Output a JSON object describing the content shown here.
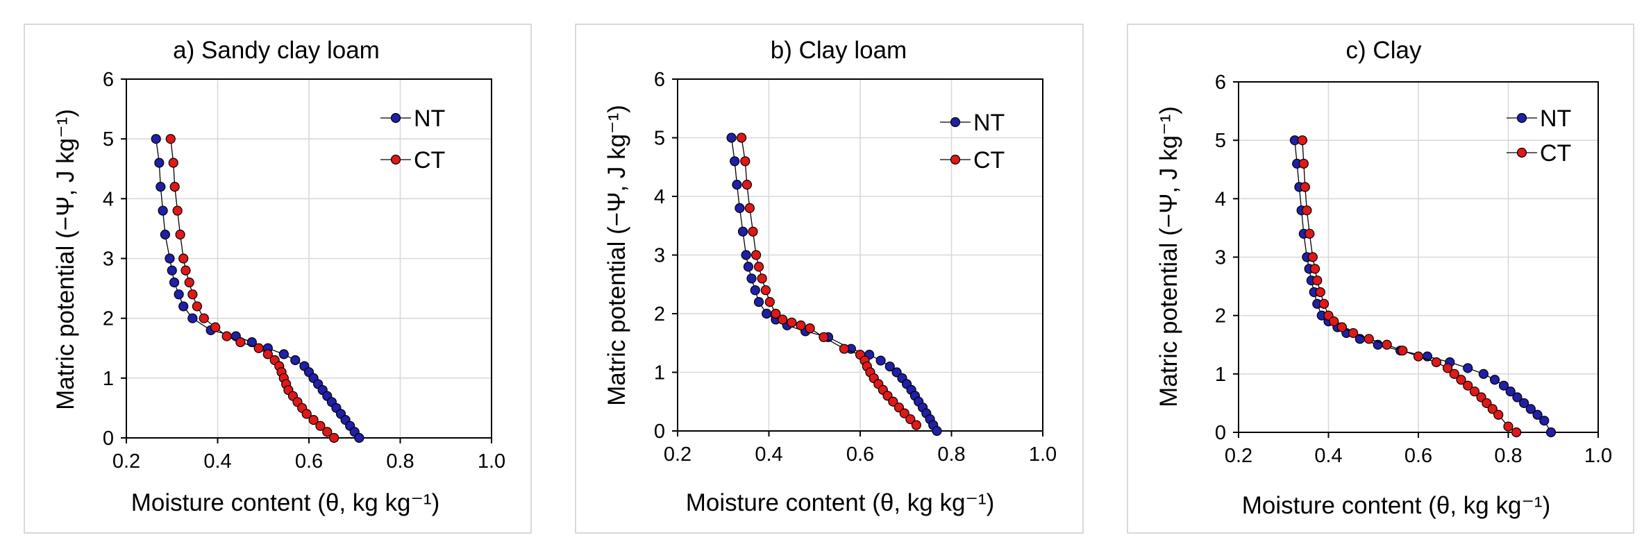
{
  "chart_data": [
    {
      "type": "line",
      "title": "a) Sandy clay loam",
      "xlabel": "Moisture content (θ, kg kg⁻¹)",
      "ylabel": "Matric potential (−Ψ, J kg⁻¹)",
      "xlim": [
        0.2,
        1.0
      ],
      "ylim": [
        0,
        6
      ],
      "xticks": [
        "0.2",
        "0.4",
        "0.6",
        "0.8",
        "1.0"
      ],
      "yticks": [
        "0",
        "1",
        "2",
        "3",
        "4",
        "5",
        "6"
      ],
      "grid": true,
      "legend_position": "top-right",
      "series": [
        {
          "name": "NT",
          "color": "#1f1fa8",
          "x": [
            0.265,
            0.272,
            0.275,
            0.28,
            0.285,
            0.295,
            0.3,
            0.305,
            0.315,
            0.325,
            0.345,
            0.385,
            0.44,
            0.475,
            0.51,
            0.545,
            0.57,
            0.59,
            0.6,
            0.61,
            0.62,
            0.63,
            0.64,
            0.65,
            0.66,
            0.67,
            0.68,
            0.69,
            0.7,
            0.71
          ],
          "y": [
            5.0,
            4.6,
            4.2,
            3.8,
            3.4,
            3.0,
            2.8,
            2.6,
            2.4,
            2.2,
            2.0,
            1.8,
            1.7,
            1.6,
            1.5,
            1.4,
            1.3,
            1.2,
            1.1,
            1.0,
            0.9,
            0.8,
            0.7,
            0.6,
            0.5,
            0.4,
            0.3,
            0.2,
            0.1,
            0.0
          ]
        },
        {
          "name": "CT",
          "color": "#e01818",
          "x": [
            0.297,
            0.303,
            0.306,
            0.312,
            0.318,
            0.325,
            0.33,
            0.338,
            0.345,
            0.355,
            0.37,
            0.395,
            0.42,
            0.45,
            0.49,
            0.51,
            0.525,
            0.535,
            0.54,
            0.545,
            0.55,
            0.555,
            0.565,
            0.575,
            0.585,
            0.595,
            0.61,
            0.625,
            0.64,
            0.655
          ],
          "y": [
            5.0,
            4.6,
            4.2,
            3.8,
            3.4,
            3.0,
            2.8,
            2.6,
            2.4,
            2.2,
            2.0,
            1.85,
            1.7,
            1.6,
            1.5,
            1.4,
            1.3,
            1.2,
            1.1,
            1.0,
            0.9,
            0.8,
            0.7,
            0.6,
            0.5,
            0.4,
            0.3,
            0.2,
            0.1,
            0.0
          ]
        }
      ]
    },
    {
      "type": "line",
      "title": "b) Clay loam",
      "xlabel": "Moisture content (θ, kg kg⁻¹)",
      "ylabel": "Matric potential (−Ψ, J kg⁻¹)",
      "xlim": [
        0.2,
        1.0
      ],
      "ylim": [
        0,
        6
      ],
      "xticks": [
        "0.2",
        "0.4",
        "0.6",
        "0.8",
        "1.0"
      ],
      "yticks": [
        "0",
        "1",
        "2",
        "3",
        "4",
        "5",
        "6"
      ],
      "grid": true,
      "legend_position": "top-right",
      "series": [
        {
          "name": "NT",
          "color": "#1f1fa8",
          "x": [
            0.318,
            0.325,
            0.33,
            0.336,
            0.343,
            0.35,
            0.355,
            0.362,
            0.37,
            0.378,
            0.395,
            0.415,
            0.44,
            0.48,
            0.53,
            0.58,
            0.62,
            0.645,
            0.665,
            0.68,
            0.692,
            0.702,
            0.712,
            0.72,
            0.728,
            0.737,
            0.745,
            0.753,
            0.76,
            0.768
          ],
          "y": [
            5.0,
            4.6,
            4.2,
            3.8,
            3.4,
            3.0,
            2.8,
            2.6,
            2.4,
            2.2,
            2.0,
            1.9,
            1.8,
            1.7,
            1.6,
            1.4,
            1.3,
            1.2,
            1.1,
            1.0,
            0.9,
            0.8,
            0.7,
            0.6,
            0.5,
            0.4,
            0.3,
            0.2,
            0.1,
            0.0
          ]
        },
        {
          "name": "CT",
          "color": "#e01818",
          "x": [
            0.34,
            0.348,
            0.352,
            0.358,
            0.365,
            0.372,
            0.378,
            0.385,
            0.393,
            0.402,
            0.415,
            0.43,
            0.45,
            0.47,
            0.49,
            0.52,
            0.565,
            0.6,
            0.61,
            0.615,
            0.622,
            0.63,
            0.64,
            0.65,
            0.66,
            0.672,
            0.685,
            0.697,
            0.71,
            0.723
          ],
          "y": [
            5.0,
            4.6,
            4.2,
            3.8,
            3.4,
            3.0,
            2.8,
            2.6,
            2.4,
            2.2,
            2.0,
            1.9,
            1.85,
            1.8,
            1.75,
            1.6,
            1.4,
            1.3,
            1.2,
            1.1,
            1.0,
            0.9,
            0.8,
            0.7,
            0.6,
            0.5,
            0.4,
            0.3,
            0.2,
            0.1
          ]
        }
      ]
    },
    {
      "type": "line",
      "title": "c) Clay",
      "xlabel": "Moisture content (θ, kg kg⁻¹)",
      "ylabel": "Matric potential (−Ψ, J kg⁻¹)",
      "xlim": [
        0.2,
        1.0
      ],
      "ylim": [
        0,
        6
      ],
      "xticks": [
        "0.2",
        "0.4",
        "0.6",
        "0.8",
        "1.0"
      ],
      "yticks": [
        "0",
        "1",
        "2",
        "3",
        "4",
        "5",
        "6"
      ],
      "grid": true,
      "legend_position": "top-right",
      "series": [
        {
          "name": "NT",
          "color": "#1f1fa8",
          "x": [
            0.325,
            0.33,
            0.335,
            0.34,
            0.345,
            0.352,
            0.357,
            0.362,
            0.368,
            0.375,
            0.385,
            0.4,
            0.42,
            0.44,
            0.47,
            0.51,
            0.56,
            0.62,
            0.67,
            0.71,
            0.745,
            0.77,
            0.79,
            0.805,
            0.82,
            0.835,
            0.85,
            0.865,
            0.88,
            0.895
          ],
          "y": [
            5.0,
            4.6,
            4.2,
            3.8,
            3.4,
            3.0,
            2.8,
            2.6,
            2.4,
            2.2,
            2.0,
            1.9,
            1.8,
            1.7,
            1.6,
            1.5,
            1.4,
            1.3,
            1.2,
            1.1,
            1.0,
            0.9,
            0.8,
            0.7,
            0.6,
            0.5,
            0.4,
            0.3,
            0.2,
            0.0
          ]
        },
        {
          "name": "CT",
          "color": "#e01818",
          "x": [
            0.342,
            0.345,
            0.348,
            0.352,
            0.358,
            0.365,
            0.37,
            0.375,
            0.382,
            0.39,
            0.4,
            0.412,
            0.43,
            0.455,
            0.49,
            0.53,
            0.565,
            0.6,
            0.64,
            0.665,
            0.68,
            0.695,
            0.71,
            0.725,
            0.74,
            0.752,
            0.765,
            0.778,
            0.8,
            0.818
          ],
          "y": [
            5.0,
            4.6,
            4.2,
            3.8,
            3.4,
            3.0,
            2.8,
            2.6,
            2.4,
            2.2,
            2.0,
            1.9,
            1.8,
            1.7,
            1.6,
            1.5,
            1.4,
            1.3,
            1.2,
            1.1,
            1.0,
            0.9,
            0.8,
            0.7,
            0.6,
            0.5,
            0.4,
            0.3,
            0.1,
            0.0
          ]
        }
      ]
    }
  ]
}
